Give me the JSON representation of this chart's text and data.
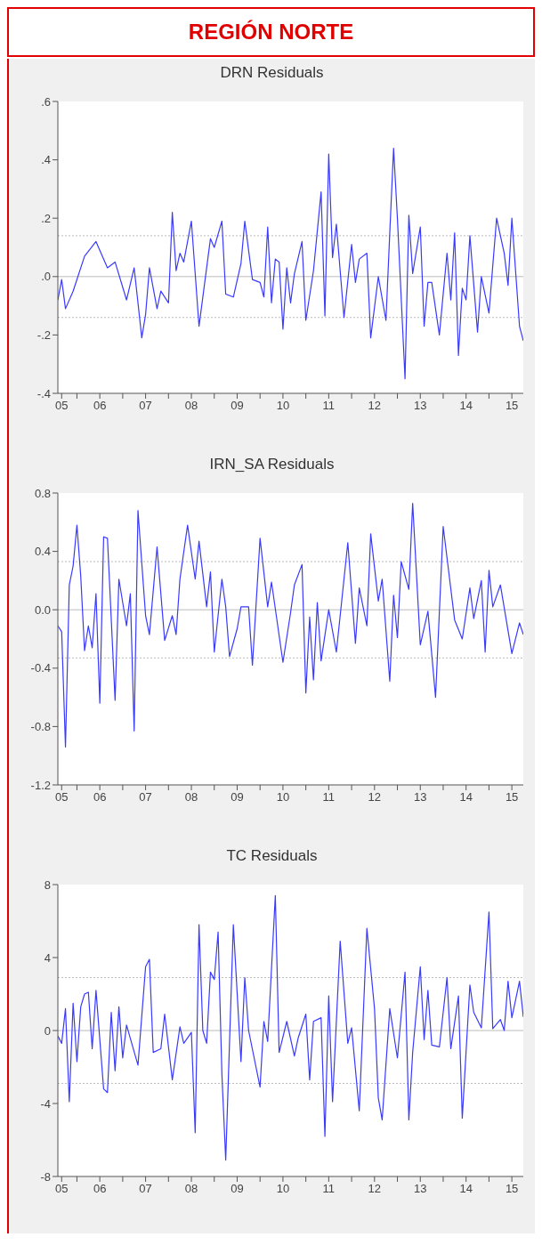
{
  "chart_data": [
    {
      "type": "line",
      "title": "DRN Residuals",
      "annotations": [
        "REGIÓN NORTE"
      ],
      "color": "#3a3aff",
      "x": [
        "2005-08",
        "2005-09",
        "2005-10",
        "2005-12",
        "2006-03",
        "2006-06",
        "2006-09",
        "2006-11",
        "2007-02",
        "2007-04",
        "2007-06",
        "2007-07",
        "2007-08",
        "2007-10",
        "2007-11",
        "2008-01",
        "2008-02",
        "2008-03",
        "2008-04",
        "2008-05",
        "2008-07",
        "2008-09",
        "2008-12",
        "2009-01",
        "2009-03",
        "2009-04",
        "2009-06",
        "2009-08",
        "2009-09",
        "2009-11",
        "2010-01",
        "2010-02",
        "2010-03",
        "2010-04",
        "2010-05",
        "2010-06",
        "2010-07",
        "2010-08",
        "2010-09",
        "2010-10",
        "2010-12",
        "2011-01",
        "2011-03",
        "2011-05",
        "2011-06",
        "2011-07",
        "2011-08",
        "2011-09",
        "2011-11",
        "2012-01",
        "2012-02",
        "2012-03",
        "2012-05",
        "2012-06",
        "2012-08",
        "2012-10",
        "2012-11",
        "2012-12",
        "2013-01",
        "2013-03",
        "2013-04",
        "2013-05",
        "2013-07",
        "2013-08",
        "2013-09",
        "2013-10",
        "2013-12",
        "2014-02",
        "2014-03",
        "2014-04",
        "2014-05",
        "2014-06",
        "2014-07",
        "2014-08",
        "2014-10",
        "2014-11",
        "2015-01",
        "2015-03",
        "2015-05",
        "2015-06",
        "2015-07",
        "2015-09",
        "2015-10"
      ],
      "values": [
        -0.08,
        -0.01,
        -0.11,
        -0.05,
        0.07,
        0.12,
        0.03,
        0.05,
        -0.08,
        0.03,
        -0.21,
        -0.13,
        0.03,
        -0.11,
        -0.05,
        -0.09,
        0.22,
        0.02,
        0.08,
        0.05,
        0.19,
        -0.17,
        0.13,
        0.1,
        0.19,
        -0.06,
        -0.07,
        0.045,
        0.19,
        -0.01,
        -0.02,
        -0.07,
        0.17,
        -0.09,
        0.06,
        0.05,
        -0.18,
        0.03,
        -0.09,
        0.01,
        0.12,
        -0.15,
        0.02,
        0.29,
        -0.135,
        0.42,
        0.065,
        0.18,
        -0.14,
        0.11,
        -0.02,
        0.06,
        0.08,
        -0.21,
        0.0,
        -0.15,
        0.15,
        0.44,
        0.2,
        -0.35,
        0.21,
        0.01,
        0.17,
        -0.17,
        -0.02,
        -0.02,
        -0.2,
        0.08,
        -0.08,
        0.15,
        -0.27,
        -0.04,
        -0.08,
        0.14,
        -0.19,
        0.0,
        -0.125,
        0.2,
        0.08,
        -0.03,
        0.2,
        -0.17,
        -0.22
      ],
      "xlim": [
        "2005-08",
        "2015-10"
      ],
      "xticks": [
        {
          "value": "2005-09",
          "label": "05"
        },
        {
          "value": "2006-01",
          "label": null
        },
        {
          "value": "2006-07",
          "label": "06"
        },
        {
          "value": "2007-01",
          "label": null
        },
        {
          "value": "2007-07",
          "label": "07"
        },
        {
          "value": "2008-01",
          "label": null
        },
        {
          "value": "2008-07",
          "label": "08"
        },
        {
          "value": "2009-01",
          "label": null
        },
        {
          "value": "2009-07",
          "label": "09"
        },
        {
          "value": "2010-01",
          "label": null
        },
        {
          "value": "2010-07",
          "label": "10"
        },
        {
          "value": "2011-01",
          "label": null
        },
        {
          "value": "2011-07",
          "label": "11"
        },
        {
          "value": "2012-01",
          "label": null
        },
        {
          "value": "2012-07",
          "label": "12"
        },
        {
          "value": "2013-01",
          "label": null
        },
        {
          "value": "2013-07",
          "label": "13"
        },
        {
          "value": "2014-01",
          "label": null
        },
        {
          "value": "2014-07",
          "label": "14"
        },
        {
          "value": "2015-01",
          "label": null
        },
        {
          "value": "2015-07",
          "label": "15"
        }
      ],
      "ylim": [
        -0.4,
        0.6
      ],
      "yticks": [
        {
          "value": -0.4,
          "label": "-.4"
        },
        {
          "value": -0.2,
          "label": "-.2"
        },
        {
          "value": 0,
          "label": ".0"
        },
        {
          "value": 0.2,
          "label": ".2"
        },
        {
          "value": 0.4,
          "label": ".4"
        },
        {
          "value": 0.6,
          "label": ".6"
        }
      ],
      "ref_lines": [
        {
          "axis": "y",
          "value": 0,
          "color": "#bbbbbb",
          "line_style": "solid"
        },
        {
          "axis": "y",
          "value": 0.14,
          "color": "#bbbbbb",
          "line_style": "dotted"
        },
        {
          "axis": "y",
          "value": -0.14,
          "color": "#bbbbbb",
          "line_style": "dotted"
        }
      ]
    },
    {
      "type": "line",
      "title": "IRN_SA Residuals",
      "color": "#3a3aff",
      "x": [
        "2005-08",
        "2005-09",
        "2005-10",
        "2005-11",
        "2005-12",
        "2006-01",
        "2006-02",
        "2006-03",
        "2006-04",
        "2006-05",
        "2006-06",
        "2006-07",
        "2006-08",
        "2006-09",
        "2006-11",
        "2006-12",
        "2007-02",
        "2007-03",
        "2007-04",
        "2007-05",
        "2007-07",
        "2007-08",
        "2007-10",
        "2007-12",
        "2008-02",
        "2008-03",
        "2008-04",
        "2008-06",
        "2008-08",
        "2008-09",
        "2008-11",
        "2008-12",
        "2009-01",
        "2009-03",
        "2009-04",
        "2009-05",
        "2009-07",
        "2009-08",
        "2009-10",
        "2009-11",
        "2010-01",
        "2010-03",
        "2010-04",
        "2010-07",
        "2010-09",
        "2010-10",
        "2010-12",
        "2011-01",
        "2011-02",
        "2011-03",
        "2011-04",
        "2011-05",
        "2011-07",
        "2011-09",
        "2011-12",
        "2012-02",
        "2012-03",
        "2012-05",
        "2012-06",
        "2012-08",
        "2012-09",
        "2012-11",
        "2012-12",
        "2013-01",
        "2013-02",
        "2013-04",
        "2013-05",
        "2013-07",
        "2013-09",
        "2013-11",
        "2014-01",
        "2014-04",
        "2014-06",
        "2014-08",
        "2014-09",
        "2014-11",
        "2014-12",
        "2015-01",
        "2015-02",
        "2015-04",
        "2015-07",
        "2015-09",
        "2015-10"
      ],
      "values": [
        -0.11,
        -0.15,
        -0.94,
        0.17,
        0.3,
        0.58,
        0.23,
        -0.28,
        -0.11,
        -0.26,
        0.11,
        -0.64,
        0.5,
        0.49,
        -0.62,
        0.21,
        -0.11,
        0.11,
        -0.83,
        0.68,
        -0.04,
        -0.17,
        0.43,
        -0.21,
        -0.04,
        -0.17,
        0.21,
        0.58,
        0.21,
        0.47,
        0.02,
        0.26,
        -0.29,
        0.21,
        0.02,
        -0.32,
        -0.13,
        0.02,
        0.02,
        -0.38,
        0.49,
        0.02,
        0.19,
        -0.36,
        -0.02,
        0.17,
        0.31,
        -0.57,
        -0.05,
        -0.48,
        0.05,
        -0.35,
        0.0,
        -0.29,
        0.46,
        -0.23,
        0.15,
        -0.11,
        0.52,
        0.06,
        0.21,
        -0.49,
        0.1,
        -0.19,
        0.33,
        0.14,
        0.73,
        -0.24,
        -0.01,
        -0.6,
        0.57,
        -0.07,
        -0.2,
        0.15,
        -0.06,
        0.2,
        -0.29,
        0.27,
        0.02,
        0.17,
        -0.3,
        -0.09,
        -0.17
      ],
      "xlim": [
        "2005-08",
        "2015-10"
      ],
      "xticks": [
        {
          "value": "2005-09",
          "label": "05"
        },
        {
          "value": "2006-01",
          "label": null
        },
        {
          "value": "2006-07",
          "label": "06"
        },
        {
          "value": "2007-01",
          "label": null
        },
        {
          "value": "2007-07",
          "label": "07"
        },
        {
          "value": "2008-01",
          "label": null
        },
        {
          "value": "2008-07",
          "label": "08"
        },
        {
          "value": "2009-01",
          "label": null
        },
        {
          "value": "2009-07",
          "label": "09"
        },
        {
          "value": "2010-01",
          "label": null
        },
        {
          "value": "2010-07",
          "label": "10"
        },
        {
          "value": "2011-01",
          "label": null
        },
        {
          "value": "2011-07",
          "label": "11"
        },
        {
          "value": "2012-01",
          "label": null
        },
        {
          "value": "2012-07",
          "label": "12"
        },
        {
          "value": "2013-01",
          "label": null
        },
        {
          "value": "2013-07",
          "label": "13"
        },
        {
          "value": "2014-01",
          "label": null
        },
        {
          "value": "2014-07",
          "label": "14"
        },
        {
          "value": "2015-01",
          "label": null
        },
        {
          "value": "2015-07",
          "label": "15"
        }
      ],
      "ylim": [
        -1.2,
        0.8
      ],
      "yticks": [
        {
          "value": -1.2,
          "label": "-1.2"
        },
        {
          "value": -0.8,
          "label": "-0.8"
        },
        {
          "value": -0.4,
          "label": "-0.4"
        },
        {
          "value": 0,
          "label": "0.0"
        },
        {
          "value": 0.4,
          "label": "0.4"
        },
        {
          "value": 0.8,
          "label": "0.8"
        }
      ],
      "ref_lines": [
        {
          "axis": "y",
          "value": 0,
          "color": "#bbbbbb",
          "line_style": "solid"
        },
        {
          "axis": "y",
          "value": 0.33,
          "color": "#bbbbbb",
          "line_style": "dotted"
        },
        {
          "axis": "y",
          "value": -0.33,
          "color": "#bbbbbb",
          "line_style": "dotted"
        }
      ]
    },
    {
      "type": "line",
      "title": "TC Residuals",
      "color": "#3a3aff",
      "x": [
        "2005-08",
        "2005-09",
        "2005-10",
        "2005-11",
        "2005-12",
        "2006-01",
        "2006-02",
        "2006-03",
        "2006-04",
        "2006-05",
        "2006-06",
        "2006-08",
        "2006-09",
        "2006-10",
        "2006-11",
        "2006-12",
        "2007-01",
        "2007-02",
        "2007-05",
        "2007-07",
        "2007-08",
        "2007-09",
        "2007-11",
        "2007-12",
        "2008-02",
        "2008-04",
        "2008-05",
        "2008-07",
        "2008-08",
        "2008-09",
        "2008-10",
        "2008-11",
        "2008-12",
        "2009-01",
        "2009-02",
        "2009-03",
        "2009-04",
        "2009-06",
        "2009-08",
        "2009-09",
        "2009-10",
        "2010-01",
        "2010-02",
        "2010-03",
        "2010-05",
        "2010-06",
        "2010-08",
        "2010-10",
        "2010-11",
        "2011-01",
        "2011-02",
        "2011-03",
        "2011-05",
        "2011-06",
        "2011-07",
        "2011-08",
        "2011-10",
        "2011-12",
        "2012-01",
        "2012-03",
        "2012-05",
        "2012-07",
        "2012-08",
        "2012-09",
        "2012-11",
        "2013-01",
        "2013-03",
        "2013-04",
        "2013-05",
        "2013-07",
        "2013-08",
        "2013-09",
        "2013-10",
        "2013-12",
        "2014-02",
        "2014-03",
        "2014-05",
        "2014-06",
        "2014-08",
        "2014-09",
        "2014-11",
        "2015-01",
        "2015-02",
        "2015-04",
        "2015-05",
        "2015-06",
        "2015-07",
        "2015-09",
        "2015-10"
      ],
      "values": [
        -0.3,
        -0.7,
        1.2,
        -3.9,
        1.5,
        -1.7,
        1.3,
        2.0,
        2.1,
        -1.0,
        2.2,
        -3.2,
        -3.4,
        1.0,
        -2.2,
        1.3,
        -1.5,
        0.3,
        -1.9,
        3.5,
        3.9,
        -1.2,
        -1.0,
        0.9,
        -2.7,
        0.2,
        -0.7,
        -0.1,
        -5.6,
        5.8,
        0.0,
        -0.7,
        3.2,
        2.8,
        5.4,
        -2.4,
        -7.1,
        5.8,
        -1.7,
        2.9,
        0.0,
        -3.1,
        0.5,
        -0.6,
        7.4,
        -1.2,
        0.5,
        -1.4,
        -0.4,
        0.9,
        -2.7,
        0.5,
        0.7,
        -5.8,
        1.9,
        -3.9,
        4.9,
        -0.7,
        0.15,
        -4.4,
        5.6,
        1.2,
        -3.7,
        -4.9,
        1.2,
        -1.5,
        3.2,
        -4.9,
        -1.2,
        3.5,
        -0.5,
        2.2,
        -0.8,
        -0.9,
        2.9,
        -1.0,
        1.9,
        -4.8,
        2.5,
        1.0,
        0.15,
        6.5,
        0.1,
        0.6,
        0.0,
        2.7,
        0.7,
        2.7,
        0.75
      ],
      "xlim": [
        "2005-08",
        "2015-10"
      ],
      "xticks": [
        {
          "value": "2005-09",
          "label": "05"
        },
        {
          "value": "2006-01",
          "label": null
        },
        {
          "value": "2006-07",
          "label": "06"
        },
        {
          "value": "2007-01",
          "label": null
        },
        {
          "value": "2007-07",
          "label": "07"
        },
        {
          "value": "2008-01",
          "label": null
        },
        {
          "value": "2008-07",
          "label": "08"
        },
        {
          "value": "2009-01",
          "label": null
        },
        {
          "value": "2009-07",
          "label": "09"
        },
        {
          "value": "2010-01",
          "label": null
        },
        {
          "value": "2010-07",
          "label": "10"
        },
        {
          "value": "2011-01",
          "label": null
        },
        {
          "value": "2011-07",
          "label": "11"
        },
        {
          "value": "2012-01",
          "label": null
        },
        {
          "value": "2012-07",
          "label": "12"
        },
        {
          "value": "2013-01",
          "label": null
        },
        {
          "value": "2013-07",
          "label": "13"
        },
        {
          "value": "2014-01",
          "label": null
        },
        {
          "value": "2014-07",
          "label": "14"
        },
        {
          "value": "2015-01",
          "label": null
        },
        {
          "value": "2015-07",
          "label": "15"
        }
      ],
      "ylim": [
        -8,
        8
      ],
      "yticks": [
        -8,
        -4,
        0,
        4,
        8
      ],
      "ref_lines": [
        {
          "axis": "y",
          "value": 0,
          "color": "#bbbbbb",
          "line_style": "solid"
        },
        {
          "axis": "y",
          "value": 2.9,
          "color": "#bbbbbb",
          "line_style": "dotted"
        },
        {
          "axis": "y",
          "value": -2.9,
          "color": "#bbbbbb",
          "line_style": "dotted"
        }
      ]
    }
  ]
}
